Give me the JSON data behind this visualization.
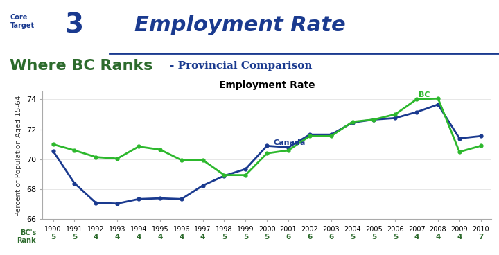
{
  "years": [
    1990,
    1991,
    1992,
    1993,
    1994,
    1995,
    1996,
    1997,
    1998,
    1999,
    2000,
    2001,
    2002,
    2003,
    2004,
    2005,
    2006,
    2007,
    2008,
    2009,
    2010
  ],
  "canada": [
    70.55,
    68.4,
    67.1,
    67.05,
    67.35,
    67.4,
    67.35,
    68.25,
    68.9,
    69.35,
    70.9,
    70.8,
    71.65,
    71.65,
    72.45,
    72.65,
    72.75,
    73.15,
    73.65,
    71.4,
    71.55
  ],
  "bc": [
    71.0,
    70.6,
    70.15,
    70.05,
    70.85,
    70.65,
    69.95,
    69.95,
    68.95,
    68.95,
    70.4,
    70.6,
    71.55,
    71.55,
    72.5,
    72.65,
    73.0,
    74.0,
    74.05,
    70.5,
    70.9
  ],
  "bc_rank": [
    "5",
    "5",
    "4",
    "4",
    "4",
    "4",
    "4",
    "4",
    "5",
    "5",
    "5",
    "6",
    "6",
    "6",
    "5",
    "5",
    "5",
    "4",
    "4",
    "4",
    "7"
  ],
  "title": "Employment Rate",
  "ylabel": "Percent of Population Aged 15-64",
  "ylim": [
    66,
    74.5
  ],
  "yticks": [
    66,
    68,
    70,
    72,
    74
  ],
  "canada_color": "#1a3a8f",
  "bc_color": "#2db82d",
  "background_color": "#ffffff",
  "header_title": "Employment Rate",
  "subtitle": "Where BC Ranks",
  "subtitle2": "Provincial Comparison",
  "rank_label": "BC's\nRank"
}
